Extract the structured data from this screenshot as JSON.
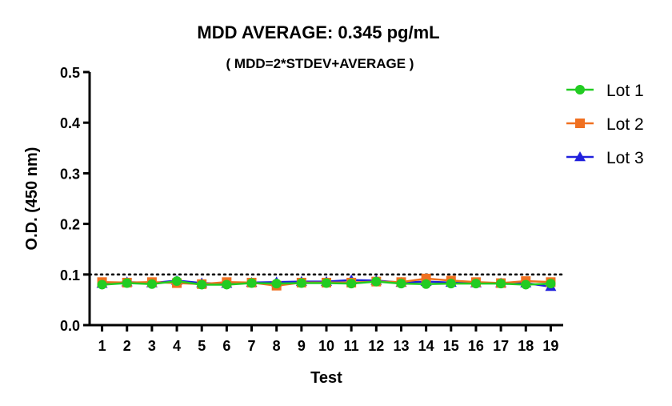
{
  "chart_data": {
    "type": "line",
    "title": "MDD AVERAGE:  0.345 pg/mL",
    "subtitle": "( MDD=2*STDEV+AVERAGE )",
    "xlabel": "Test",
    "ylabel": "O.D. (450 nm)",
    "xlim": [
      0.5,
      19.5
    ],
    "ylim": [
      0.0,
      0.5
    ],
    "yticks": [
      "0.0",
      "0.1",
      "0.2",
      "0.3",
      "0.4",
      "0.5"
    ],
    "categories": [
      "1",
      "2",
      "3",
      "4",
      "5",
      "6",
      "7",
      "8",
      "9",
      "10",
      "11",
      "12",
      "13",
      "14",
      "15",
      "16",
      "17",
      "18",
      "19"
    ],
    "threshold_line": 0.1,
    "grid": false,
    "legend_position": "top-right",
    "series": [
      {
        "name": "Lot 1",
        "marker": "circle",
        "color": "#22cc22",
        "values": [
          0.08,
          0.083,
          0.081,
          0.087,
          0.08,
          0.08,
          0.083,
          0.082,
          0.083,
          0.083,
          0.082,
          0.086,
          0.082,
          0.081,
          0.082,
          0.082,
          0.082,
          0.08,
          0.082
        ]
      },
      {
        "name": "Lot 2",
        "marker": "square",
        "color": "#f07020",
        "values": [
          0.085,
          0.084,
          0.085,
          0.083,
          0.081,
          0.085,
          0.084,
          0.078,
          0.084,
          0.084,
          0.084,
          0.086,
          0.085,
          0.092,
          0.088,
          0.085,
          0.083,
          0.087,
          0.085
        ]
      },
      {
        "name": "Lot 3",
        "marker": "triangle",
        "color": "#2020dd",
        "values": [
          0.082,
          0.085,
          0.083,
          0.088,
          0.083,
          0.082,
          0.084,
          0.085,
          0.086,
          0.086,
          0.089,
          0.088,
          0.084,
          0.086,
          0.084,
          0.083,
          0.083,
          0.083,
          0.076
        ]
      }
    ]
  }
}
